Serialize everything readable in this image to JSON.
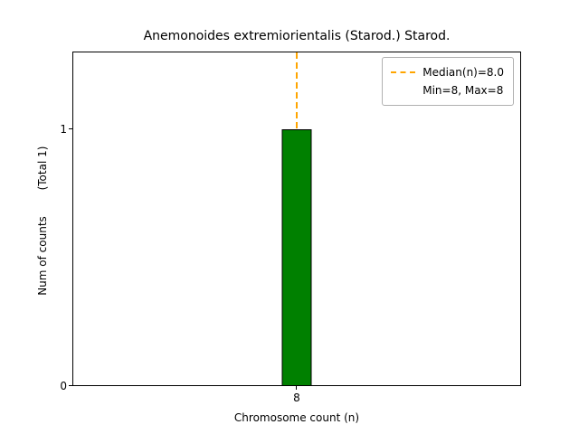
{
  "chart_data": {
    "type": "bar",
    "title": "Anemonoides extremiorientalis (Starod.) Starod.",
    "xlabel": "Chromosome count (n)",
    "ylabel": "Num of counts",
    "ylabel_total": "(Total 1)",
    "categories": [
      "8"
    ],
    "values": [
      1
    ],
    "ylim": [
      0,
      1.3
    ],
    "yticks": [
      "0",
      "1"
    ],
    "xticks": [
      "8"
    ],
    "grid": false,
    "bar_color": "#008000",
    "bar_edge_color": "#000000",
    "median_value": 8.0,
    "median_line_color": "#ffa500",
    "legend": {
      "position": "upper right",
      "entries": [
        {
          "label": "Median(n)=8.0",
          "swatch": "dashed-orange-line"
        },
        {
          "label": "Min=8, Max=8",
          "swatch": "none"
        }
      ]
    }
  }
}
